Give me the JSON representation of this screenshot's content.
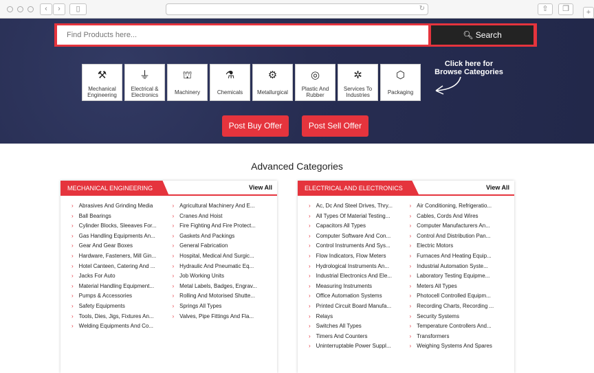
{
  "search": {
    "placeholder": "Find Products here...",
    "button": "Search"
  },
  "tiles": [
    {
      "label": "Mechanical Engineering",
      "icon": "tools-icon",
      "glyph": "⚒"
    },
    {
      "label": "Electrical & Electronics",
      "icon": "plug-icon",
      "glyph": "⏚"
    },
    {
      "label": "Machinery",
      "icon": "crane-icon",
      "glyph": "⛫"
    },
    {
      "label": "Chemicals",
      "icon": "flask-icon",
      "glyph": "⚗"
    },
    {
      "label": "Metallurgical",
      "icon": "metal-icon",
      "glyph": "⚙"
    },
    {
      "label": "Plastic And Rubber",
      "icon": "tyre-icon",
      "glyph": "◎"
    },
    {
      "label": "Services To Industries",
      "icon": "gear-wrench-icon",
      "glyph": "✲"
    },
    {
      "label": "Packaging",
      "icon": "box-icon",
      "glyph": "⬡"
    }
  ],
  "browse": "Click here for Browse Categories",
  "buttons": {
    "buy": "Post Buy Offer",
    "sell": "Post Sell Offer"
  },
  "section_title": "Advanced Categories",
  "colors": {
    "accent": "#e5343d",
    "hero": "#272d52",
    "dark": "#232323"
  },
  "panels": [
    {
      "title": "MECHANICAL ENGINEERING",
      "view_all": "View All",
      "col1": [
        "Abrasives And Grinding Media",
        "Ball Bearings",
        "Cylinder Blocks, Sleeaves For...",
        "Gas Handling Equipments An...",
        "Gear And Gear Boxes",
        "Hardware, Fasteners, Mill Gin...",
        "Hotel Canteen, Catering And ...",
        "Jacks For Auto",
        "Material Handling Equipment...",
        "Pumps & Accessories",
        "Safety Equipments",
        "Tools, Dies, Jigs, Fixtures An...",
        "Welding Equipments And Co..."
      ],
      "col2": [
        "Agricultural Machinery And E...",
        "Cranes And Hoist",
        "Fire Fighting And Fire Protect...",
        "Gaskets And Packings",
        "General Fabrication",
        "Hospital, Medical And Surgic...",
        "Hydraulic And Pneumatic Eq...",
        "Job Working Units",
        "Metal Labels, Badges, Engrav...",
        "Rolling And Motorised Shutte...",
        "Springs All Types",
        "Valves, Pipe Fittings And Fla..."
      ]
    },
    {
      "title": "ELECTRICAL AND ELECTRONICS",
      "view_all": "View All",
      "col1": [
        "Ac, Dc And Steel Drives, Thry...",
        "All Types Of Material Testing...",
        "Capacitors All Types",
        "Computer Software And Con...",
        "Control Instruments And Sys...",
        "Flow Indicators, Flow Meters",
        "Hydrological Instruments An...",
        "Industrial Electronics And Ele...",
        "Measuring Instruments",
        "Office Automation Systems",
        "Printed Circuit Board Manufa...",
        "Relays",
        "Switches All Types",
        "Timers And Counters",
        "Uninterruptable Power Suppl..."
      ],
      "col2": [
        "Air Conditioning, Refrigeratio...",
        "Cables, Cords And Wires",
        "Computer Manufacturers An...",
        "Control And Distribution Pan...",
        "Electric Motors",
        "Furnaces And Heating Equip...",
        "Industrial Automation Syste...",
        "Laboratory Testing Equipme...",
        "Meters All Types",
        "Photocell Controlled Equipm...",
        "Recording Charts, Recording ...",
        "Security Systems",
        "Temperature Controllers And...",
        "Transformers",
        "Weighing Systems And Spares"
      ]
    }
  ]
}
